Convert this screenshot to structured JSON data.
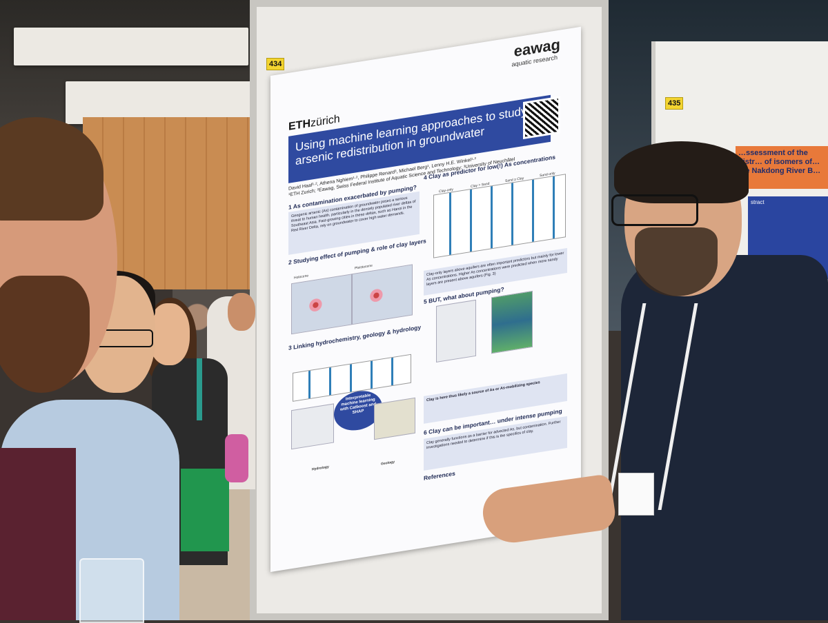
{
  "scene": "Scientist presenting a research poster at a conference poster session",
  "board_tags": {
    "left": "434",
    "right": "435"
  },
  "poster": {
    "logo_right": "eawag",
    "logo_right_sub": "aquatic research",
    "logo_left_bold": "ETH",
    "logo_left_rest": "zürich",
    "title": "Using machine learning approaches to study arsenic redistribution in groundwater",
    "authors": "David Haaf¹·², Athena Nghiem¹·², Philippe Renard³, Michael Berg¹, Lenny H.E. Winkel¹·²",
    "affiliations": "¹ETH Zurich; ²Eawag, Swiss Federal Institute of Aquatic Science and Technology; ³University of Neuchâtel",
    "sections": {
      "s1": "1 As contamination exacerbated by pumping?",
      "s1_text": "Geogenic arsenic (As) contamination of groundwater poses a serious threat to human health, particularly in the densely populated river deltas of Southeast Asia. Fast-growing cities in these deltas, such as Hanoi in the Red River Delta, rely on groundwater to cover high water demands.",
      "s2": "2 Studying effect of pumping & role of clay layers",
      "s3": "3 Linking hydrochemistry, geology & hydrology",
      "s4": "4 Clay as predictor for low(!) As concentrations",
      "s4_text": "Clay-only layers above aquifers are often important predictors but mainly for lower As concentrations. Higher As concentrations were predicted when more sandy layers are present above aquifers (Fig. 3)",
      "s5": "5 BUT, what about pumping?",
      "s5_text": "Clay is here thus likely a source of As or As-mobilizing species",
      "s6": "6 Clay can be important… under intense pumping",
      "s6_text": "Clay generally functions as a barrier for advected As, but contamination. Further investigations needed to determine if this is the specifics of clay.",
      "refs": "References"
    },
    "map_labels": [
      "Holocene",
      "Pleistocene"
    ],
    "chart_labels": [
      "Clay-only",
      "Clay > Sand",
      "Sand ≥ Clay",
      "Sand-only"
    ],
    "bubble": "Interpretable machine learning with Catboost and SHAP",
    "hydrology": "Hydrology",
    "geology": "Geology"
  },
  "right_poster": {
    "title": "…ssessment of the distr… of isomers of… the Nakdong River B…",
    "abstract": "stract"
  }
}
